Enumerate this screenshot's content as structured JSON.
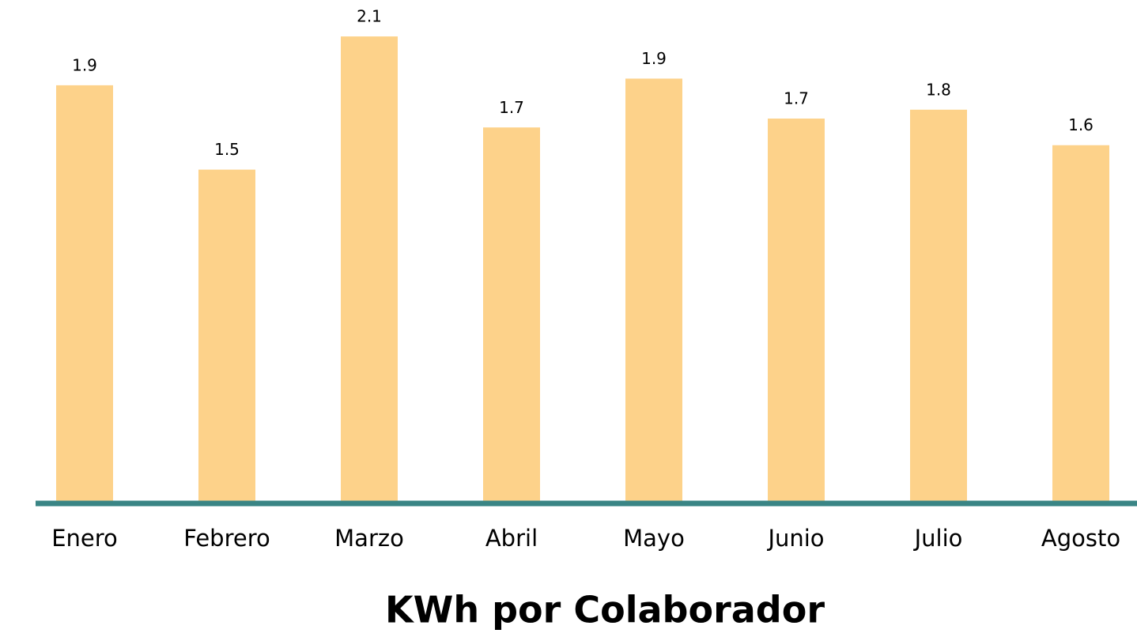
{
  "chart_data": {
    "type": "bar",
    "title": "KWh por Colaborador",
    "categories": [
      "Enero",
      "Febrero",
      "Marzo",
      "Abril",
      "Mayo",
      "Junio",
      "Julio",
      "Agosto"
    ],
    "values": [
      1.88,
      1.5,
      2.1,
      1.69,
      1.91,
      1.73,
      1.77,
      1.61
    ],
    "value_labels": [
      "1.9",
      "1.5",
      "2.1",
      "1.7",
      "1.9",
      "1.7",
      "1.8",
      "1.6"
    ],
    "color": "#fdd28a",
    "axis_color": "#3a8585",
    "ylim": [
      0,
      2.2
    ]
  }
}
